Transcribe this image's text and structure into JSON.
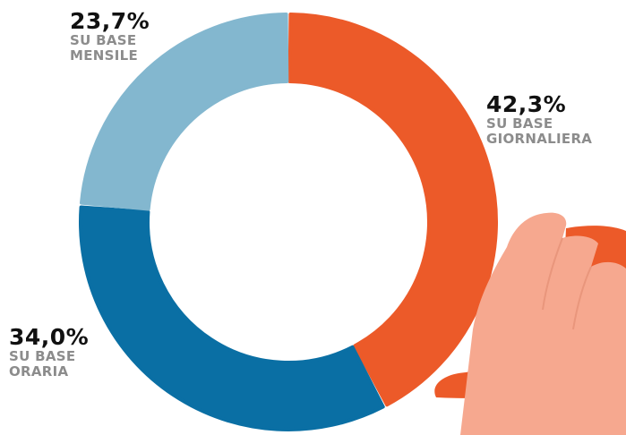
{
  "chart_data": {
    "type": "pie",
    "variant": "donut",
    "slices": [
      {
        "label": "SU BASE GIORNALIERA",
        "value": 42.3,
        "value_label": "42,3%",
        "color": "#EC5A29"
      },
      {
        "label": "SU BASE ORARIA",
        "value": 34.0,
        "value_label": "34,0%",
        "color": "#0A6FA4"
      },
      {
        "label": "SU BASE MENSILE",
        "value": 23.7,
        "value_label": "23,7%",
        "color": "#83B7CF"
      }
    ]
  },
  "labels": {
    "mensile": {
      "pct": "23,7%",
      "line1": "SU BASE",
      "line2": "MENSILE"
    },
    "giornaliera": {
      "pct": "42,3%",
      "line1": "SU BASE",
      "line2": "GIORNALIERA"
    },
    "oraria": {
      "pct": "34,0%",
      "line1": "SU BASE",
      "line2": "ORARIA"
    }
  },
  "colors": {
    "hand": "#F6A88F",
    "cuff": "#EC5A29"
  }
}
